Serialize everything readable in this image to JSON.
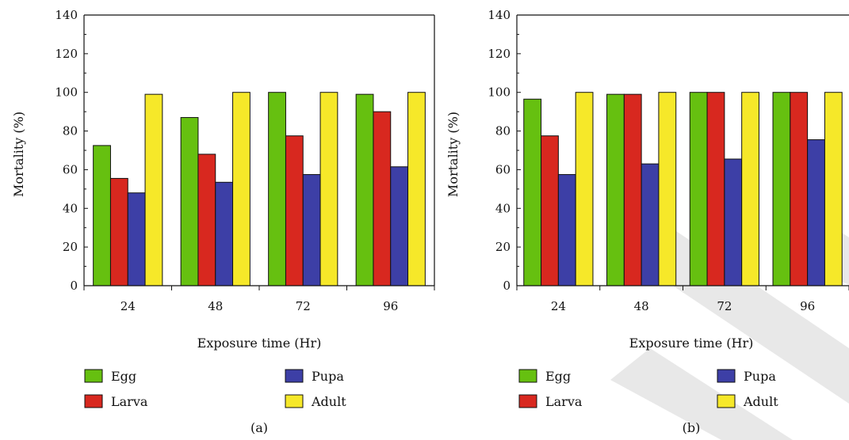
{
  "colors": {
    "egg": "#66c010",
    "larva": "#d8281f",
    "pupa": "#3d3fa6",
    "adult": "#f6e829",
    "axis": "#111111",
    "watermark": "#e8e8e8"
  },
  "watermark": "RETRACTED",
  "chart_data": [
    {
      "type": "bar",
      "panel_label": "(a)",
      "xlabel": "Exposure time (Hr)",
      "ylabel": "Mortality (%)",
      "ylim": [
        0,
        140
      ],
      "yticks": [
        "0",
        "20",
        "40",
        "60",
        "80",
        "100",
        "120",
        "140"
      ],
      "categories": [
        "24",
        "48",
        "72",
        "96"
      ],
      "grid": false,
      "legend_position": "bottom",
      "series": [
        {
          "name": "Egg",
          "color_key": "egg",
          "values": [
            72.5,
            87,
            100,
            99
          ]
        },
        {
          "name": "Larva",
          "color_key": "larva",
          "values": [
            55.5,
            68,
            77.5,
            90
          ]
        },
        {
          "name": "Pupa",
          "color_key": "pupa",
          "values": [
            48,
            53.5,
            57.5,
            61.5
          ]
        },
        {
          "name": "Adult",
          "color_key": "adult",
          "values": [
            99,
            100,
            100,
            100
          ]
        }
      ]
    },
    {
      "type": "bar",
      "panel_label": "(b)",
      "xlabel": "Exposure time (Hr)",
      "ylabel": "Mortality (%)",
      "ylim": [
        0,
        140
      ],
      "yticks": [
        "0",
        "20",
        "40",
        "60",
        "80",
        "100",
        "120",
        "140"
      ],
      "categories": [
        "24",
        "48",
        "72",
        "96"
      ],
      "grid": false,
      "legend_position": "bottom",
      "series": [
        {
          "name": "Egg",
          "color_key": "egg",
          "values": [
            96.5,
            99,
            100,
            100
          ]
        },
        {
          "name": "Larva",
          "color_key": "larva",
          "values": [
            77.5,
            99,
            100,
            100
          ]
        },
        {
          "name": "Pupa",
          "color_key": "pupa",
          "values": [
            57.5,
            63,
            65.5,
            75.5
          ]
        },
        {
          "name": "Adult",
          "color_key": "adult",
          "values": [
            100,
            100,
            100,
            100
          ]
        }
      ]
    }
  ]
}
